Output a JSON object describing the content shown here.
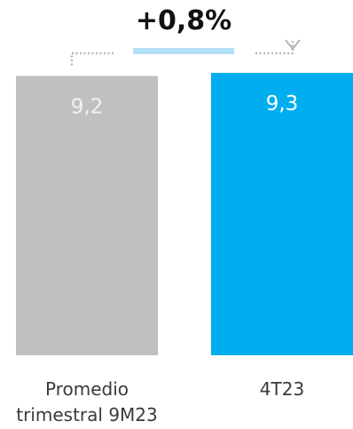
{
  "chart_data": {
    "type": "bar",
    "categories": [
      [
        "Promedio",
        "trimestral 9M23"
      ],
      [
        "4T23"
      ]
    ],
    "values": [
      9.2,
      9.3
    ],
    "value_labels": [
      "9,2",
      "9,3"
    ],
    "colors": [
      "#c0c0c0",
      "#00aeef"
    ],
    "value_label_colors": [
      "#f2f2f2",
      "#ffffff"
    ],
    "ylim": [
      0,
      11.7
    ],
    "grid": false,
    "annotation": {
      "text": "+0,8%",
      "accent_color": "#b3e0f7",
      "arrow_color": "#b5b5b5"
    }
  }
}
